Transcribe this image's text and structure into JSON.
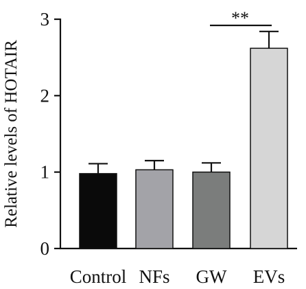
{
  "chart_data": {
    "type": "bar",
    "categories": [
      "Control",
      "NFs",
      "GW",
      "EVs"
    ],
    "values": [
      0.98,
      1.03,
      1.0,
      2.62
    ],
    "errors": [
      0.13,
      0.12,
      0.12,
      0.22
    ],
    "colors": [
      "#0a0a0a",
      "#a3a3a8",
      "#7b7d7c",
      "#d6d6d6"
    ],
    "ylabel": "Relative levels of HOTAIR",
    "ylim": [
      0,
      3
    ],
    "yticks": [
      "0",
      "1",
      "2",
      "3"
    ],
    "significance": {
      "from": "GW",
      "to": "EVs",
      "label": "**"
    },
    "grid": false,
    "legend": "none"
  }
}
